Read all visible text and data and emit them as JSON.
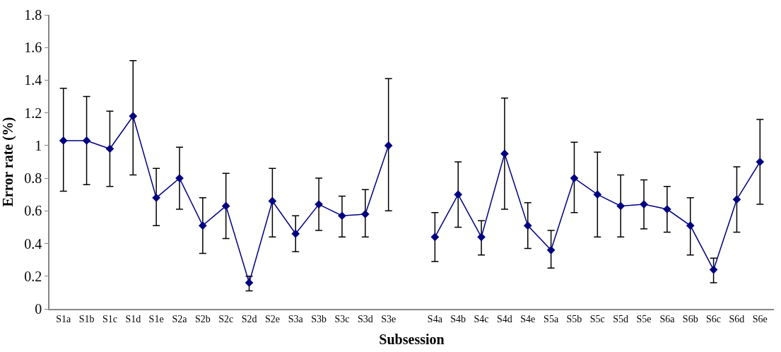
{
  "chart_data": {
    "type": "line",
    "xlabel": "Subsession",
    "ylabel": "Error rate (%)",
    "categories": [
      "S1a",
      "S1b",
      "S1c",
      "S1d",
      "S1e",
      "S2a",
      "S2b",
      "S2c",
      "S2d",
      "S2e",
      "S3a",
      "S3b",
      "S3c",
      "S3d",
      "S3e",
      null,
      "S4a",
      "S4b",
      "S4c",
      "S4d",
      "S4e",
      "S5a",
      "S5b",
      "S5c",
      "S5d",
      "S5e",
      "S6a",
      "S6b",
      "S6c",
      "S6d",
      "S6e"
    ],
    "series": [
      {
        "color": "#000080",
        "values": [
          1.03,
          1.03,
          0.98,
          1.18,
          0.68,
          0.8,
          0.51,
          0.63,
          0.16,
          0.66,
          0.46,
          0.64,
          0.57,
          0.58,
          1.0,
          null,
          0.44,
          0.7,
          0.44,
          0.95,
          0.51,
          0.36,
          0.8,
          0.7,
          0.63,
          0.64,
          0.61,
          0.51,
          0.24,
          0.67,
          0.9
        ],
        "errors": [
          [
            0.72,
            1.35
          ],
          [
            0.76,
            1.3
          ],
          [
            0.75,
            1.21
          ],
          [
            0.82,
            1.52
          ],
          [
            0.51,
            0.86
          ],
          [
            0.61,
            0.99
          ],
          [
            0.34,
            0.68
          ],
          [
            0.43,
            0.83
          ],
          [
            0.11,
            0.2
          ],
          [
            0.44,
            0.86
          ],
          [
            0.35,
            0.57
          ],
          [
            0.48,
            0.8
          ],
          [
            0.44,
            0.69
          ],
          [
            0.44,
            0.73
          ],
          [
            0.6,
            1.41
          ],
          null,
          [
            0.29,
            0.59
          ],
          [
            0.5,
            0.9
          ],
          [
            0.33,
            0.54
          ],
          [
            0.61,
            1.29
          ],
          [
            0.37,
            0.65
          ],
          [
            0.25,
            0.48
          ],
          [
            0.59,
            1.02
          ],
          [
            0.44,
            0.96
          ],
          [
            0.44,
            0.82
          ],
          [
            0.49,
            0.79
          ],
          [
            0.47,
            0.75
          ],
          [
            0.33,
            0.68
          ],
          [
            0.16,
            0.31
          ],
          [
            0.47,
            0.87
          ],
          [
            0.64,
            1.16
          ]
        ]
      }
    ],
    "ylim": [
      0,
      1.8
    ],
    "yticks": [
      0,
      0.2,
      0.4,
      0.6,
      0.8,
      1,
      1.2,
      1.4,
      1.6,
      1.8
    ],
    "grid": false,
    "marker": "diamond",
    "line_style": "solid"
  }
}
